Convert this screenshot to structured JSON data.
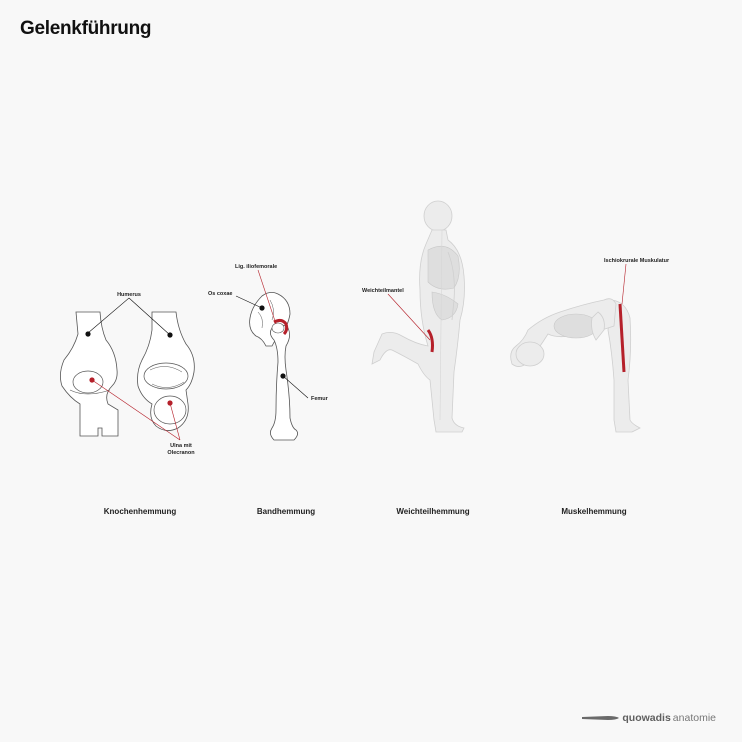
{
  "title": "Gelenkführung",
  "panels": [
    {
      "caption": "Knochenhemmung",
      "labels": {
        "humerus": "Humerus",
        "ulna_1": "Ulna mit",
        "ulna_2": "Olecranon"
      }
    },
    {
      "caption": "Bandhemmung",
      "labels": {
        "lig": "Lig. iliofemorale",
        "coxae": "Os coxae",
        "femur": "Femur"
      }
    },
    {
      "caption": "Weichteilhemmung",
      "labels": {
        "mantel": "Weichteilmantel"
      }
    },
    {
      "caption": "Muskelhemmung",
      "labels": {
        "ischio": "Ischiokrurale Muskulatur"
      }
    }
  ],
  "brand": {
    "part1": "quowadis",
    "part2": "anatomie"
  },
  "colors": {
    "accent": "#b5202a",
    "dot": "#111111",
    "bone_outline": "#555555",
    "body_fill": "#ececec"
  }
}
